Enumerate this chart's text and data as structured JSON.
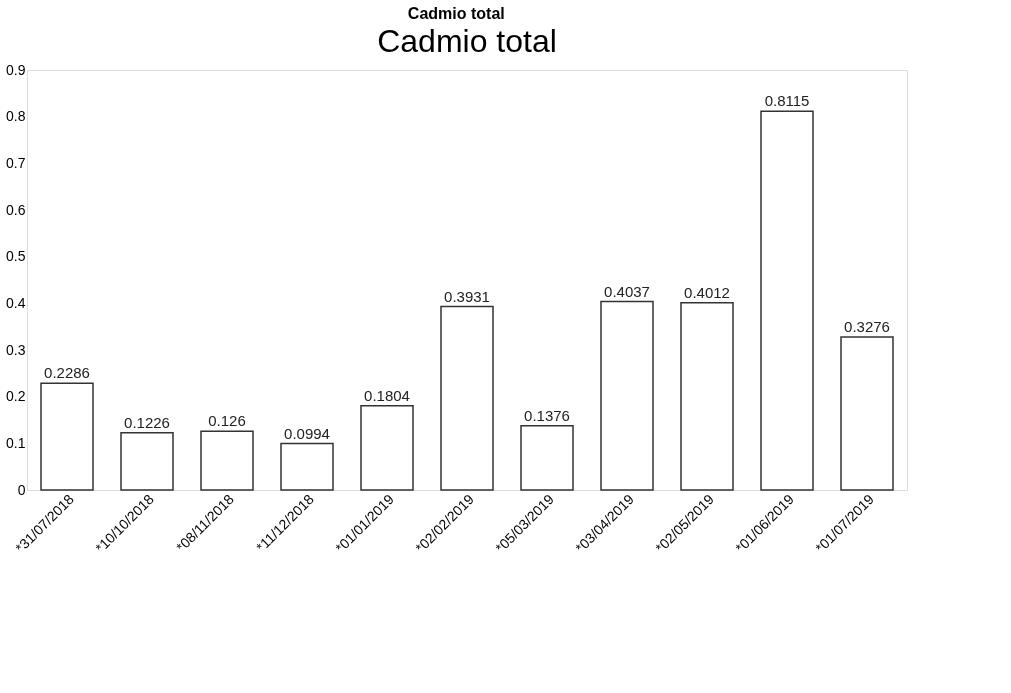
{
  "chart_data": {
    "type": "bar",
    "title": "Cadmio total",
    "subtitle": "Cadmio total",
    "categories": [
      "*31/07/2018",
      "*10/10/2018",
      "*08/11/2018",
      "*11/12/2018",
      "*01/01/2019",
      "*02/02/2019",
      "*05/03/2019",
      "*03/04/2019",
      "*02/05/2019",
      "*01/06/2019",
      "*01/07/2019"
    ],
    "values": [
      0.2286,
      0.1226,
      0.126,
      0.0994,
      0.1804,
      0.3931,
      0.1376,
      0.4037,
      0.4012,
      0.8115,
      0.3276
    ],
    "color": "#ffffff",
    "ylim": [
      0,
      0.9
    ],
    "yticks": [
      0,
      0.1,
      0.2,
      0.3,
      0.4,
      0.5,
      0.6,
      0.7,
      0.8,
      0.9
    ],
    "data_labels": true,
    "grid": false
  }
}
